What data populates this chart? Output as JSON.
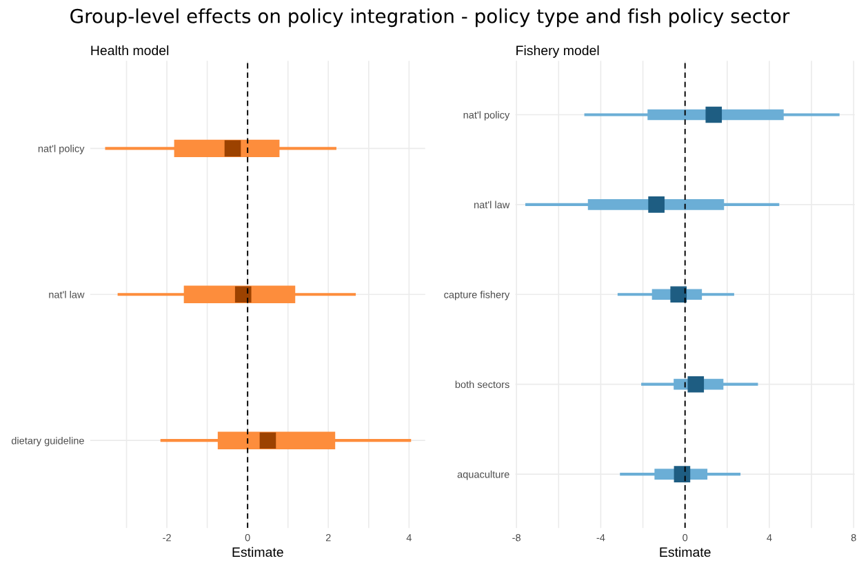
{
  "chart_data": [
    {
      "type": "box",
      "orientation": "horizontal",
      "title": "Group-level effects on policy integration - policy type and fish policy sector",
      "subtitle": "Health model",
      "xlabel": "Estimate",
      "categories": [
        "nat'l policy",
        "nat'l law",
        "dietary guideline"
      ],
      "series": [
        {
          "color": "#fd8d3c",
          "boxes": [
            {
              "low": -3.53,
              "q1": -1.82,
              "median": -0.37,
              "q3": 0.79,
              "high": 2.2
            },
            {
              "low": -3.22,
              "q1": -1.58,
              "median": -0.11,
              "q3": 1.18,
              "high": 2.68
            },
            {
              "low": -2.16,
              "q1": -0.74,
              "median": 0.5,
              "q3": 2.17,
              "high": 4.05
            }
          ]
        }
      ],
      "xlim": [
        -3.9,
        4.4
      ],
      "xticks": [
        {
          "value": -3,
          "label": null
        },
        -2,
        {
          "value": -1,
          "label": null
        },
        0,
        {
          "value": 1,
          "label": null
        },
        2,
        {
          "value": 3,
          "label": null
        },
        4
      ],
      "ref_lines": [
        {
          "axis": "x",
          "value": 0,
          "color": "#000000",
          "line_style": "dashed"
        }
      ],
      "grid": true,
      "marker": "square"
    },
    {
      "type": "box",
      "orientation": "horizontal",
      "subtitle": "Fishery model",
      "xlabel": "Estimate",
      "categories": [
        "nat'l policy",
        "nat'l law",
        "capture fishery",
        "both sectors",
        "aquaculture"
      ],
      "series": [
        {
          "color": "#6baed6",
          "boxes": [
            {
              "low": -4.78,
              "q1": -1.78,
              "median": 1.36,
              "q3": 4.68,
              "high": 7.33
            },
            {
              "low": -7.58,
              "q1": -4.61,
              "median": -1.36,
              "q3": 1.85,
              "high": 4.47
            },
            {
              "low": -3.2,
              "q1": -1.57,
              "median": -0.31,
              "q3": 0.8,
              "high": 2.33
            },
            {
              "low": -2.08,
              "q1": -0.54,
              "median": 0.51,
              "q3": 1.82,
              "high": 3.46
            },
            {
              "low": -3.09,
              "q1": -1.45,
              "median": -0.14,
              "q3": 1.06,
              "high": 2.63
            }
          ]
        }
      ],
      "xlim": [
        -8.05,
        8.05
      ],
      "xticks": [
        -8,
        {
          "value": -6,
          "label": null
        },
        -4,
        {
          "value": -2,
          "label": null
        },
        0,
        {
          "value": 2,
          "label": null
        },
        4,
        {
          "value": 6,
          "label": null
        },
        8
      ],
      "ref_lines": [
        {
          "axis": "x",
          "value": 0,
          "color": "#000000",
          "line_style": "dashed"
        }
      ],
      "grid": true,
      "marker": "square"
    }
  ]
}
